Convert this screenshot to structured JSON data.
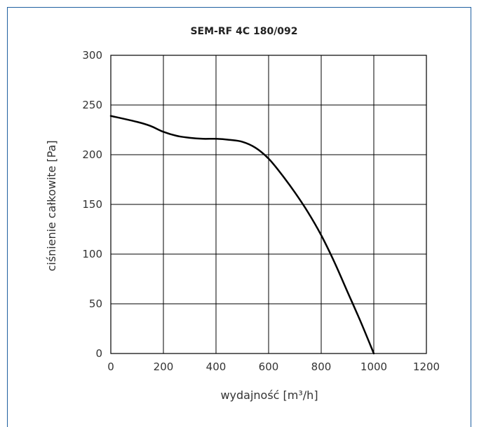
{
  "chart_data": {
    "type": "line",
    "title": "SEM-RF 4C 180/092",
    "xlabel": "wydajność [m³/h]",
    "ylabel": "ciśnienie całkowite [Pa]",
    "xlim": [
      0,
      1200
    ],
    "ylim": [
      0,
      300
    ],
    "xticks": [
      0,
      200,
      400,
      600,
      800,
      1000,
      1200
    ],
    "yticks": [
      0,
      50,
      100,
      150,
      200,
      250,
      300
    ],
    "grid": true,
    "series": [
      {
        "x": [
          0,
          100,
          150,
          200,
          250,
          300,
          350,
          400,
          450,
          500,
          550,
          600,
          650,
          700,
          750,
          800,
          850,
          900,
          950,
          1000
        ],
        "y": [
          239,
          233,
          229,
          223,
          219,
          217,
          216,
          216,
          215,
          213,
          207,
          196,
          180,
          162,
          142,
          119,
          92,
          62,
          32,
          0
        ]
      }
    ],
    "colors": {
      "line": "#000000",
      "grid": "#000000",
      "frame": "#1f5fa0"
    }
  }
}
